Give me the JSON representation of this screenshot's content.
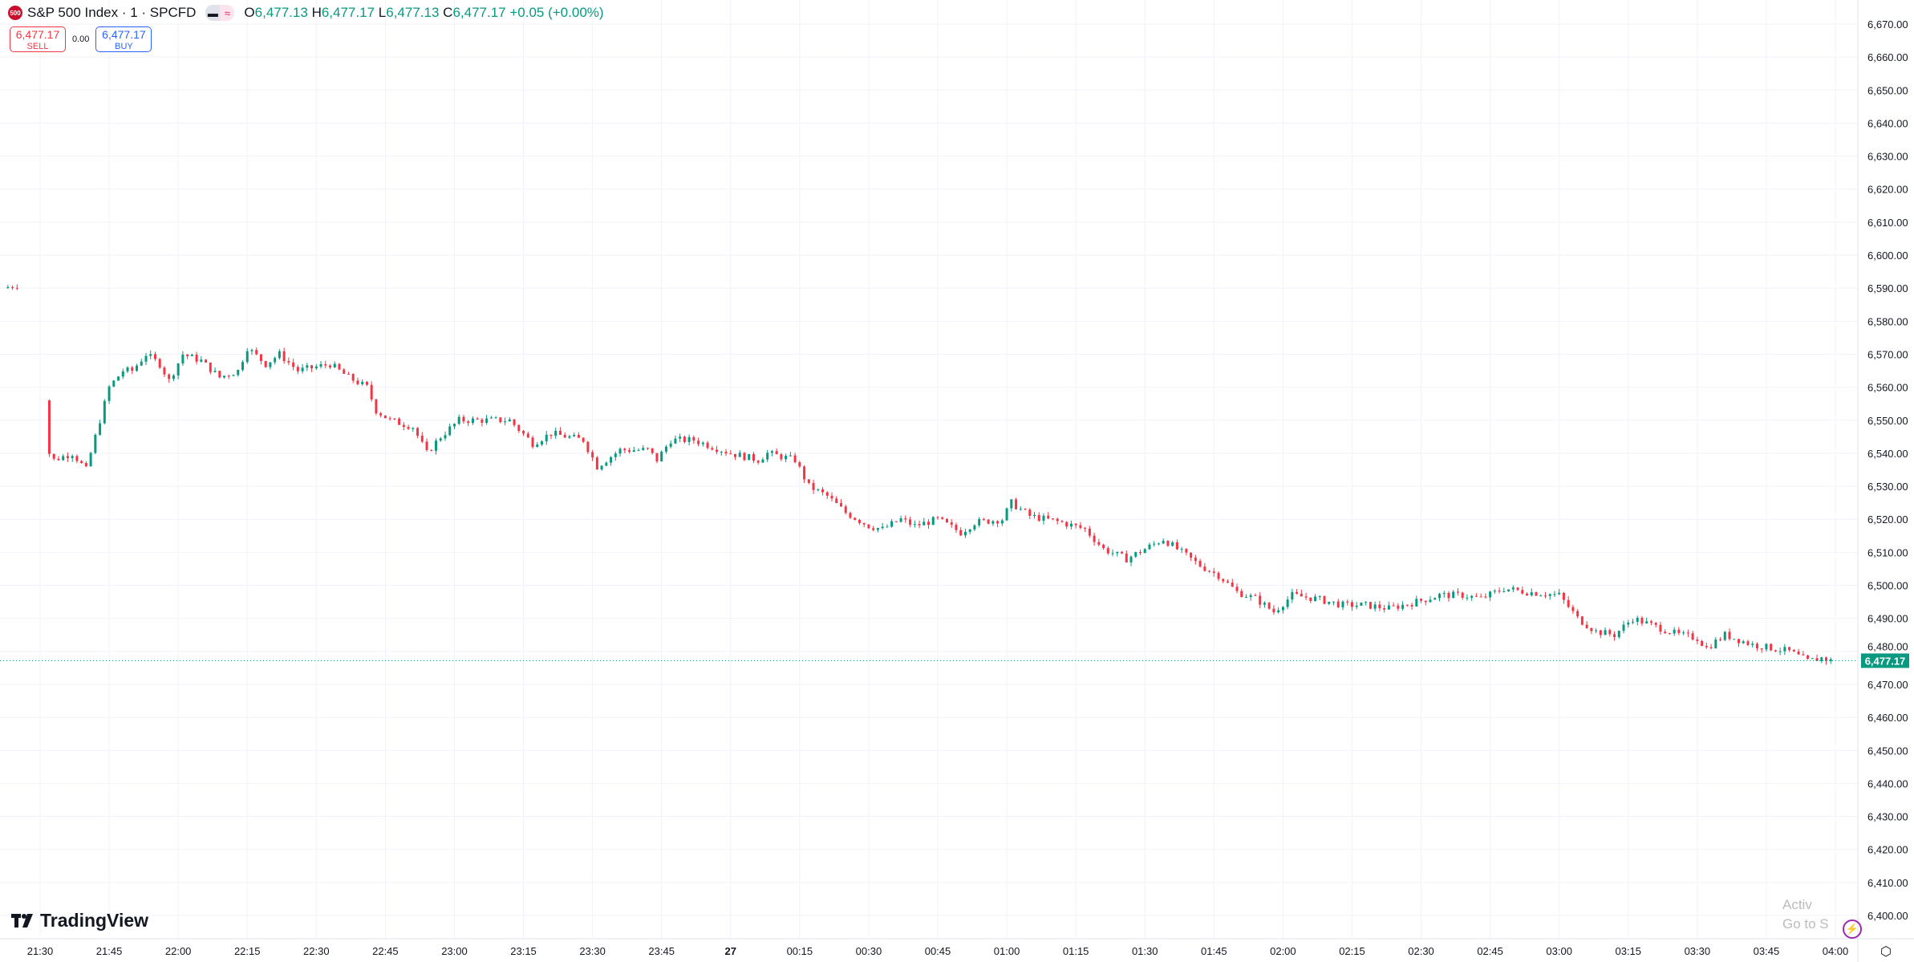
{
  "header": {
    "symbol_logo": "500",
    "symbol_title": "S&P 500 Index · 1 · SPCFD",
    "ohlc": {
      "o_label": "O",
      "o": "6,477.13",
      "h_label": "H",
      "h": "6,477.17",
      "l_label": "L",
      "l": "6,477.13",
      "c_label": "C",
      "c": "6,477.17",
      "change": "+0.05 (+0.00%)"
    },
    "sell": {
      "price": "6,477.17",
      "label": "SELL"
    },
    "spread": "0.00",
    "buy": {
      "price": "6,477.17",
      "label": "BUY"
    }
  },
  "branding": "TradingView",
  "watermark": {
    "line1": "Activ",
    "line2": "Go to S"
  },
  "icons": {
    "alert": "lightning-icon",
    "settings": "settings-icon"
  },
  "colors": {
    "up": "#089981",
    "down": "#f23645",
    "grid": "#f0f3fa",
    "current_price": "#089981"
  },
  "chart_data": {
    "type": "candlestick",
    "interval_minutes": 1,
    "ylim": [
      6400,
      6670
    ],
    "y_ticks": [
      "6,670.00",
      "6,660.00",
      "6,650.00",
      "6,640.00",
      "6,630.00",
      "6,620.00",
      "6,610.00",
      "6,600.00",
      "6,590.00",
      "6,580.00",
      "6,570.00",
      "6,560.00",
      "6,550.00",
      "6,540.00",
      "6,530.00",
      "6,520.00",
      "6,510.00",
      "6,500.00",
      "6,490.00",
      "6,480.00",
      "6,470.00",
      "6,460.00",
      "6,450.00",
      "6,440.00",
      "6,430.00",
      "6,420.00",
      "6,410.00",
      "6,400.00"
    ],
    "x_ticks": [
      "21:30",
      "21:45",
      "22:00",
      "22:15",
      "22:30",
      "22:45",
      "23:00",
      "23:15",
      "23:30",
      "23:45",
      "27",
      "00:15",
      "00:30",
      "00:45",
      "01:00",
      "01:15",
      "01:30",
      "01:45",
      "02:00",
      "02:15",
      "02:30",
      "02:45",
      "03:00",
      "03:15",
      "03:30",
      "03:45",
      "04:00"
    ],
    "current_price": 6477.17,
    "current_price_label": "6,477.17",
    "grid": true,
    "price_path": [
      [
        "21:22",
        6590
      ],
      [
        "21:25",
        6591
      ],
      [
        "21:31",
        6556
      ],
      [
        "21:32",
        6540
      ],
      [
        "21:33",
        6538
      ],
      [
        "21:37",
        6540
      ],
      [
        "21:40",
        6535
      ],
      [
        "21:42",
        6545
      ],
      [
        "21:45",
        6560
      ],
      [
        "21:48",
        6565
      ],
      [
        "21:50",
        6565
      ],
      [
        "21:53",
        6570
      ],
      [
        "21:56",
        6567
      ],
      [
        "21:58",
        6562
      ],
      [
        "22:01",
        6570
      ],
      [
        "22:05",
        6568
      ],
      [
        "22:09",
        6563
      ],
      [
        "22:13",
        6565
      ],
      [
        "22:15",
        6572
      ],
      [
        "22:19",
        6567
      ],
      [
        "22:22",
        6570
      ],
      [
        "22:26",
        6565
      ],
      [
        "22:33",
        6567
      ],
      [
        "22:37",
        6563
      ],
      [
        "22:41",
        6560
      ],
      [
        "22:43",
        6553
      ],
      [
        "22:46",
        6550
      ],
      [
        "22:51",
        6548
      ],
      [
        "22:54",
        6540
      ],
      [
        "22:57",
        6545
      ],
      [
        "23:01",
        6550
      ],
      [
        "23:07",
        6550
      ],
      [
        "23:12",
        6550
      ],
      [
        "23:17",
        6543
      ],
      [
        "23:21",
        6546
      ],
      [
        "23:28",
        6544
      ],
      [
        "23:31",
        6536
      ],
      [
        "23:36",
        6541
      ],
      [
        "23:42",
        6541
      ],
      [
        "23:44",
        6538
      ],
      [
        "23:47",
        6544
      ],
      [
        "23:52",
        6544
      ],
      [
        "23:56",
        6542
      ],
      [
        "00:00",
        6540
      ],
      [
        "00:06",
        6538
      ],
      [
        "00:08",
        6540
      ],
      [
        "00:14",
        6538
      ],
      [
        "00:17",
        6530
      ],
      [
        "00:21",
        6527
      ],
      [
        "00:25",
        6522
      ],
      [
        "00:30",
        6518
      ],
      [
        "00:33",
        6517
      ],
      [
        "00:37",
        6520
      ],
      [
        "00:40",
        6518
      ],
      [
        "00:45",
        6520
      ],
      [
        "00:50",
        6516
      ],
      [
        "00:53",
        6519
      ],
      [
        "00:59",
        6520
      ],
      [
        "01:01",
        6525
      ],
      [
        "01:05",
        6521
      ],
      [
        "01:12",
        6519
      ],
      [
        "01:17",
        6517
      ],
      [
        "01:21",
        6511
      ],
      [
        "01:26",
        6508
      ],
      [
        "01:30",
        6511
      ],
      [
        "01:34",
        6514
      ],
      [
        "01:38",
        6510
      ],
      [
        "01:42",
        6506
      ],
      [
        "01:46",
        6503
      ],
      [
        "01:50",
        6498
      ],
      [
        "01:54",
        6496
      ],
      [
        "01:58",
        6492
      ],
      [
        "02:02",
        6497
      ],
      [
        "02:07",
        6496
      ],
      [
        "02:13",
        6494
      ],
      [
        "02:18",
        6494
      ],
      [
        "02:23",
        6493
      ],
      [
        "02:29",
        6495
      ],
      [
        "02:34",
        6497
      ],
      [
        "02:39",
        6497
      ],
      [
        "02:43",
        6496
      ],
      [
        "02:48",
        6499
      ],
      [
        "02:53",
        6498
      ],
      [
        "03:00",
        6497
      ],
      [
        "03:04",
        6490
      ],
      [
        "03:08",
        6486
      ],
      [
        "03:12",
        6485
      ],
      [
        "03:16",
        6490
      ],
      [
        "03:20",
        6488
      ],
      [
        "03:26",
        6485
      ],
      [
        "03:30",
        6484
      ],
      [
        "03:32",
        6481
      ],
      [
        "03:36",
        6485
      ],
      [
        "03:42",
        6482
      ],
      [
        "03:46",
        6481
      ],
      [
        "03:50",
        6480
      ],
      [
        "03:54",
        6477
      ],
      [
        "03:57",
        6478
      ],
      [
        "03:59",
        6477.17
      ]
    ]
  }
}
